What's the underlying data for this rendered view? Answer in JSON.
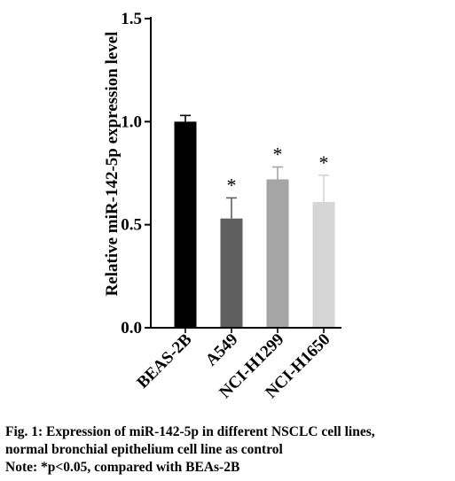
{
  "chart_data": {
    "type": "bar",
    "categories": [
      "BEAS-2B",
      "A549",
      "NCI-H1299",
      "NCI-H1650"
    ],
    "values": [
      1.0,
      0.53,
      0.72,
      0.61
    ],
    "errors": [
      0.03,
      0.1,
      0.06,
      0.13
    ],
    "significance": [
      "",
      "*",
      "*",
      "*"
    ],
    "colors": [
      "#000000",
      "#5f5f5f",
      "#a5a5a5",
      "#d5d5d5"
    ],
    "ylabel": "Relative miR-142-5p expression level",
    "ylim": [
      0.0,
      1.5
    ],
    "yticks": [
      "0.0",
      "0.5",
      "1.0",
      "1.5"
    ],
    "ytick_values": [
      0.0,
      0.5,
      1.0,
      1.5
    ],
    "grid": false
  },
  "caption": {
    "line1": "Fig. 1: Expression of miR-142-5p in different NSCLC cell lines,",
    "line2": "normal bronchial epithelium cell line as control",
    "line3": "Note: *p<0.05, compared with BEAs-2B"
  }
}
